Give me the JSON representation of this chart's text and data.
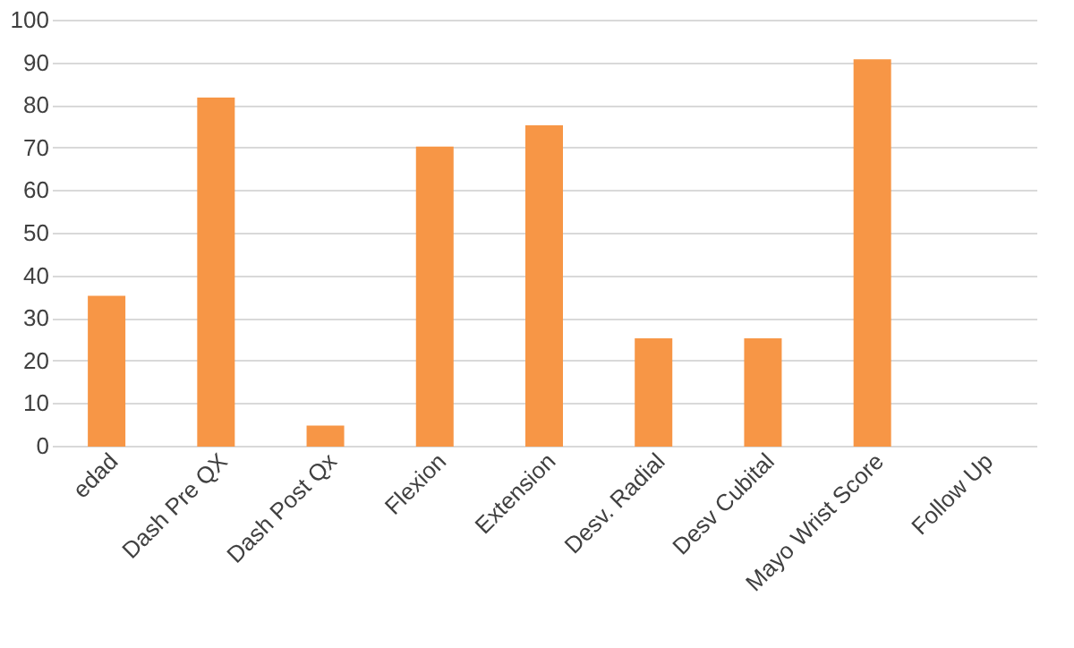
{
  "chart_data": {
    "type": "bar",
    "categories": [
      "edad",
      "Dash Pre QX",
      "Dash Post Qx",
      "Flexion",
      "Extension",
      "Desv. Radial",
      "Desv Cubital",
      "Mayo Wrist Score",
      "Follow Up"
    ],
    "values": [
      35,
      81.5,
      4.5,
      70,
      75,
      25,
      25,
      90.5,
      null
    ],
    "color": "#f79646",
    "ylim": [
      0,
      100
    ],
    "yticks": [
      0,
      10,
      20,
      30,
      40,
      50,
      60,
      70,
      80,
      90,
      100
    ],
    "grid": "y"
  }
}
